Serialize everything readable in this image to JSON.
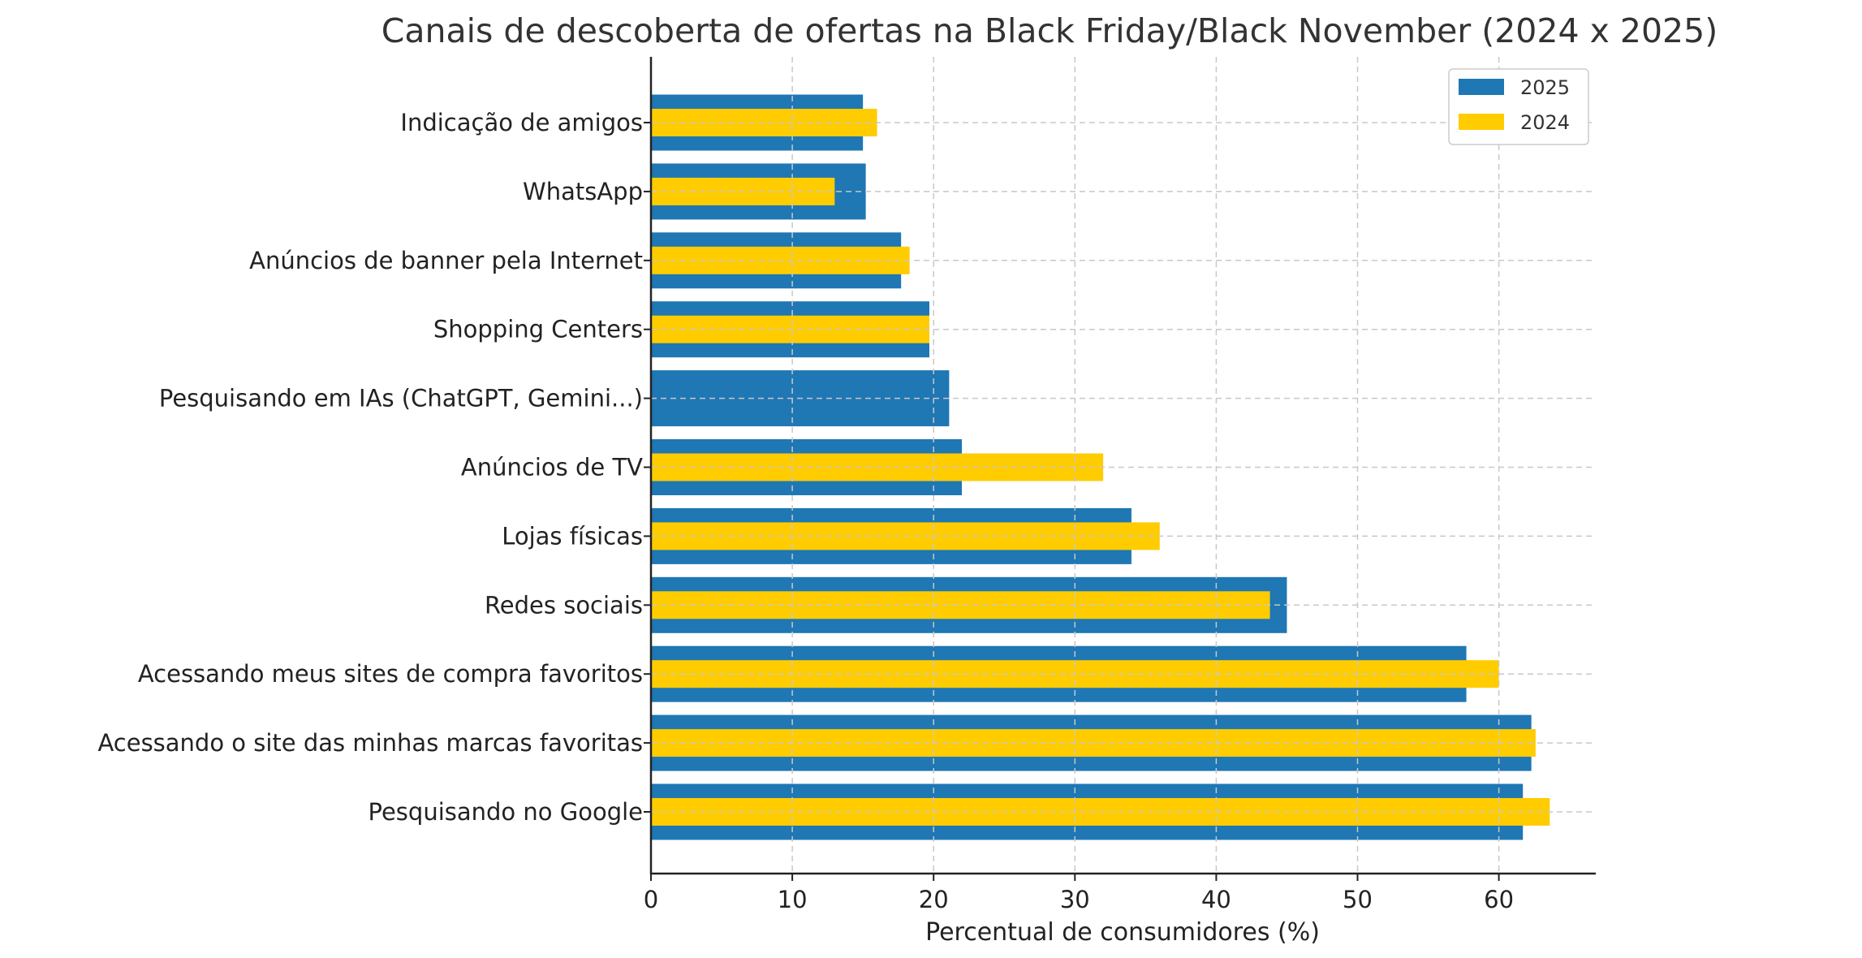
{
  "chart_data": {
    "type": "bar",
    "orientation": "horizontal",
    "title": "Canais de descoberta de ofertas na Black Friday/Black November (2024 x 2025)",
    "xlabel": "Percentual de consumidores (%)",
    "ylabel": "",
    "xlim": [
      0,
      66.8
    ],
    "xticks": [
      0,
      10,
      20,
      30,
      40,
      50,
      60
    ],
    "grid": true,
    "legend_position": "top-right",
    "categories": [
      "Indicação de amigos",
      "WhatsApp",
      "Anúncios de banner pela Internet",
      "Shopping Centers",
      "Pesquisando em IAs (ChatGPT, Gemini...)",
      "Anúncios de TV",
      "Lojas físicas",
      "Redes sociais",
      "Acessando meus sites de compra favoritos",
      "Acessando o site das minhas marcas favoritas",
      "Pesquisando no Google"
    ],
    "series": [
      {
        "name": "2025",
        "color": "#1f77b4",
        "values": [
          15,
          15.2,
          17.7,
          19.7,
          21.1,
          22,
          34,
          45,
          57.7,
          62.3,
          61.7
        ]
      },
      {
        "name": "2024",
        "color": "#ffcc00",
        "values": [
          16,
          13,
          18.3,
          19.7,
          null,
          32,
          36,
          43.8,
          60,
          62.6,
          63.6
        ]
      }
    ]
  }
}
